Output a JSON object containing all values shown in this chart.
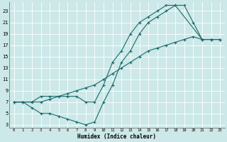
{
  "xlabel": "Humidex (Indice chaleur)",
  "bg_color": "#cce8e8",
  "grid_color": "#b0d8d8",
  "line_color": "#1a6b6b",
  "xlim": [
    -0.5,
    23.5
  ],
  "ylim": [
    2.5,
    24.5
  ],
  "xticks": [
    0,
    1,
    2,
    3,
    4,
    5,
    6,
    7,
    8,
    9,
    10,
    11,
    12,
    13,
    14,
    15,
    16,
    17,
    18,
    19,
    20,
    21,
    22,
    23
  ],
  "yticks": [
    3,
    5,
    7,
    9,
    11,
    13,
    15,
    17,
    19,
    21,
    23
  ],
  "line1_x": [
    0,
    1,
    2,
    3,
    4,
    5,
    6,
    7,
    8,
    9,
    10,
    11,
    12,
    13,
    14,
    15,
    16,
    17,
    18,
    21,
    22,
    23
  ],
  "line1_y": [
    7,
    7,
    7,
    8,
    8,
    8,
    8,
    8,
    7,
    7,
    10,
    14,
    16,
    19,
    21,
    22,
    23,
    24,
    24,
    18,
    18,
    18
  ],
  "line2_x": [
    0,
    1,
    2,
    3,
    4,
    5,
    6,
    7,
    8,
    9,
    10,
    11,
    12,
    13,
    14,
    15,
    16,
    17,
    18,
    19,
    20,
    21,
    22,
    23
  ],
  "line2_y": [
    7,
    7,
    6,
    5,
    5,
    4.5,
    4,
    3.5,
    3,
    3.5,
    7,
    10,
    14,
    16,
    19,
    21,
    22,
    23,
    24,
    24,
    21,
    18,
    18,
    18
  ],
  "line3_x": [
    0,
    1,
    2,
    3,
    4,
    5,
    6,
    7,
    8,
    9,
    10,
    11,
    12,
    13,
    14,
    15,
    16,
    17,
    18,
    19,
    20,
    21,
    22,
    23
  ],
  "line3_y": [
    7,
    7,
    7,
    7,
    7.5,
    8,
    8.5,
    9,
    9.5,
    10,
    11,
    12,
    13,
    14,
    15,
    16,
    16.5,
    17,
    17.5,
    18,
    18.5,
    18,
    18,
    18
  ]
}
